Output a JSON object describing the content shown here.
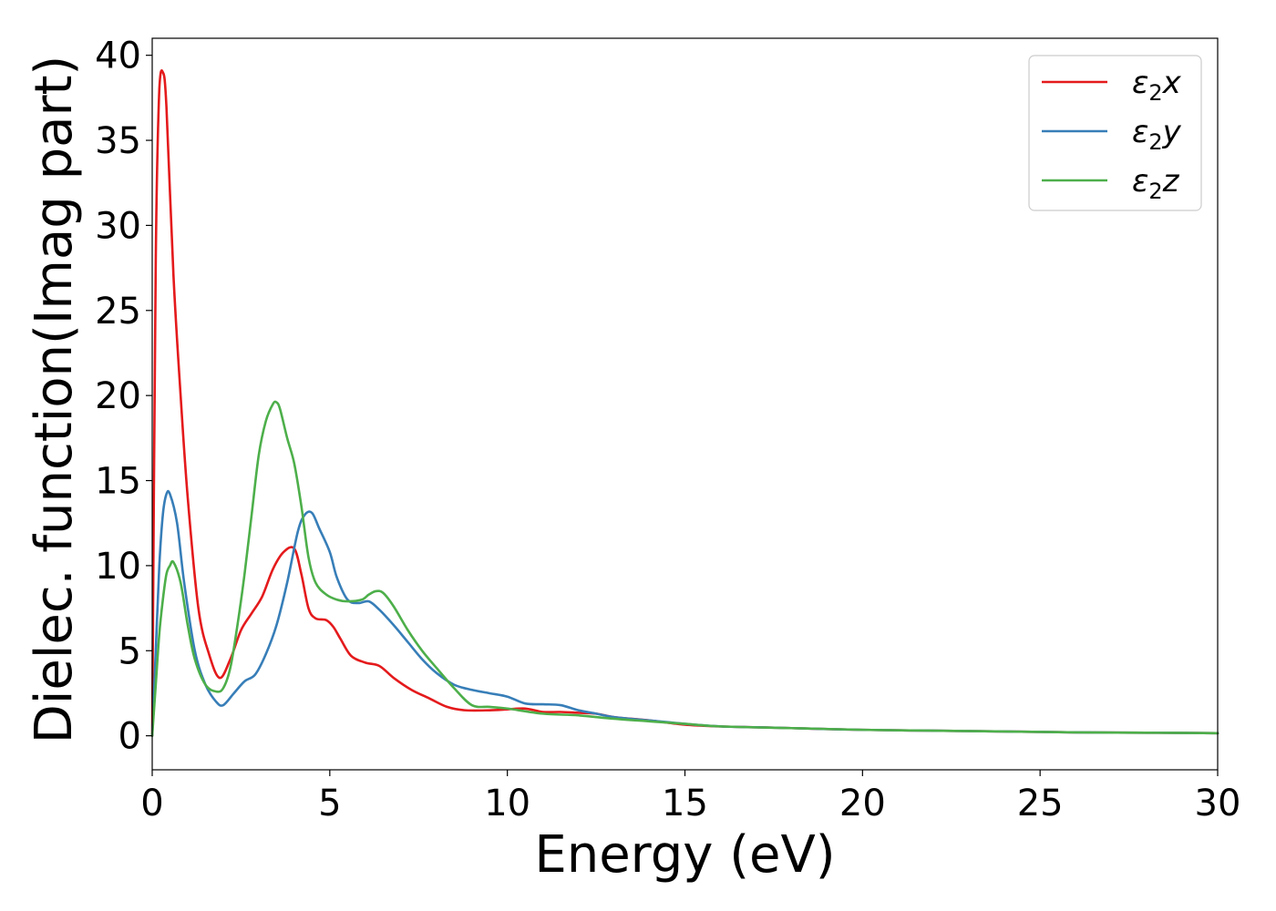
{
  "chart_data": {
    "type": "line",
    "title": "",
    "xlabel": "Energy (eV)",
    "ylabel": "Dielec. function(Imag part)",
    "xlim": [
      0,
      30
    ],
    "ylim": [
      -2,
      41
    ],
    "xticks": [
      0,
      5,
      10,
      15,
      20,
      25,
      30
    ],
    "yticks": [
      0,
      5,
      10,
      15,
      20,
      25,
      30,
      35,
      40
    ],
    "grid": false,
    "legend_position": "top-right",
    "series": [
      {
        "name": "ε₂x",
        "symbol": "ε",
        "subscript": "2",
        "axis": "x",
        "color": "#e41a1c",
        "x": [
          0,
          0.1,
          0.2,
          0.3,
          0.4,
          0.6,
          0.8,
          1.0,
          1.3,
          1.6,
          1.9,
          2.2,
          2.5,
          2.8,
          3.1,
          3.4,
          3.7,
          4.0,
          4.2,
          4.4,
          4.6,
          4.9,
          5.1,
          5.3,
          5.6,
          6.0,
          6.4,
          6.8,
          7.3,
          7.8,
          8.3,
          8.8,
          9.5,
          10.0,
          10.5,
          11.0,
          11.5,
          12.0,
          12.5,
          13.0,
          14.0,
          15.0,
          16.0,
          17.0,
          18.0,
          20.0,
          22.0,
          24.0,
          26.0,
          28.0,
          30.0
        ],
        "y": [
          0,
          28,
          38,
          39,
          37,
          27,
          20,
          14,
          7.5,
          4.8,
          3.4,
          4.5,
          6.2,
          7.2,
          8.2,
          9.8,
          10.8,
          11.0,
          9.5,
          7.5,
          6.9,
          6.8,
          6.4,
          5.7,
          4.7,
          4.3,
          4.1,
          3.4,
          2.7,
          2.2,
          1.7,
          1.5,
          1.5,
          1.55,
          1.6,
          1.4,
          1.4,
          1.35,
          1.3,
          1.1,
          0.9,
          0.65,
          0.55,
          0.5,
          0.45,
          0.35,
          0.3,
          0.25,
          0.2,
          0.18,
          0.15
        ]
      },
      {
        "name": "ε₂y",
        "symbol": "ε",
        "subscript": "2",
        "axis": "y",
        "color": "#377eb8",
        "x": [
          0,
          0.1,
          0.2,
          0.3,
          0.4,
          0.5,
          0.7,
          0.9,
          1.2,
          1.5,
          1.8,
          2.0,
          2.3,
          2.6,
          2.9,
          3.2,
          3.5,
          3.8,
          4.1,
          4.3,
          4.5,
          4.7,
          5.0,
          5.2,
          5.5,
          5.8,
          6.1,
          6.4,
          6.8,
          7.2,
          7.6,
          8.0,
          8.5,
          9.0,
          9.5,
          10.0,
          10.5,
          11.0,
          11.5,
          12.0,
          12.5,
          13.0,
          14.0,
          15.0,
          16.0,
          17.0,
          18.0,
          20.0,
          22.0,
          24.0,
          26.0,
          28.0,
          30.0
        ],
        "y": [
          0,
          5,
          10,
          13,
          14.2,
          14.2,
          12.5,
          9,
          5,
          3,
          2,
          1.8,
          2.5,
          3.2,
          3.6,
          4.8,
          6.5,
          9,
          12.0,
          13.0,
          13.1,
          12.2,
          10.8,
          9.3,
          8.0,
          7.8,
          7.9,
          7.4,
          6.5,
          5.5,
          4.5,
          3.7,
          3.0,
          2.7,
          2.5,
          2.3,
          1.9,
          1.85,
          1.8,
          1.5,
          1.3,
          1.1,
          0.9,
          0.7,
          0.55,
          0.5,
          0.45,
          0.35,
          0.3,
          0.25,
          0.2,
          0.18,
          0.15
        ]
      },
      {
        "name": "ε₂z",
        "symbol": "ε",
        "subscript": "2",
        "axis": "z",
        "color": "#4daf4a",
        "x": [
          0,
          0.1,
          0.2,
          0.3,
          0.4,
          0.5,
          0.6,
          0.8,
          1.0,
          1.2,
          1.5,
          1.8,
          2.0,
          2.2,
          2.4,
          2.6,
          2.8,
          3.0,
          3.2,
          3.4,
          3.5,
          3.6,
          3.8,
          4.0,
          4.2,
          4.4,
          4.6,
          4.9,
          5.2,
          5.5,
          5.9,
          6.1,
          6.3,
          6.5,
          6.8,
          7.2,
          7.6,
          8.0,
          8.5,
          9.0,
          9.5,
          10.0,
          11.0,
          12.0,
          13.0,
          14.0,
          15.0,
          16.0,
          18.0,
          20.0,
          22.0,
          24.0,
          26.0,
          28.0,
          30.0
        ],
        "y": [
          0,
          3,
          6,
          8,
          9.5,
          10,
          10.2,
          9,
          6.5,
          4.5,
          3.0,
          2.6,
          2.8,
          4.0,
          6.5,
          9.5,
          13,
          16.5,
          18.5,
          19.5,
          19.6,
          19.2,
          17.5,
          16.0,
          13.5,
          10.5,
          9.0,
          8.3,
          8.0,
          7.9,
          8.0,
          8.3,
          8.5,
          8.4,
          7.6,
          6.2,
          5.0,
          4.0,
          2.8,
          1.8,
          1.7,
          1.6,
          1.3,
          1.2,
          1.0,
          0.85,
          0.7,
          0.55,
          0.45,
          0.35,
          0.3,
          0.25,
          0.2,
          0.18,
          0.15
        ]
      }
    ]
  }
}
